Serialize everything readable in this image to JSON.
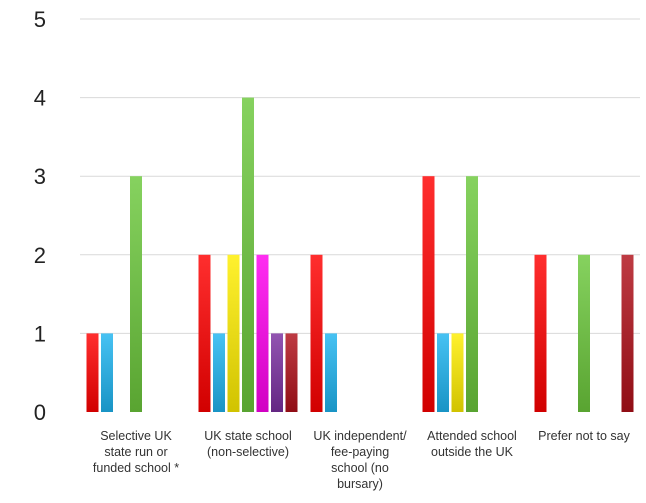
{
  "chart_data": {
    "type": "bar",
    "categories": [
      "Selective UK state run or funded school *",
      "UK state school (non-selective)",
      "UK independent/ fee-paying school (no bursary)",
      "Attended school outside the UK",
      "Prefer not to say"
    ],
    "category_lines": [
      [
        "Selective UK",
        "state run or",
        "funded school *"
      ],
      [
        "UK state school",
        "(non-selective)"
      ],
      [
        "UK independent/",
        "fee-paying",
        "school (no",
        "bursary)"
      ],
      [
        "Attended school",
        "outside the UK"
      ],
      [
        "Prefer not to say"
      ]
    ],
    "series": [
      {
        "color": "#ff0000",
        "values": [
          1,
          2,
          2,
          3,
          2
        ]
      },
      {
        "color": "#1eb4f0",
        "values": [
          1,
          1,
          1,
          1,
          0
        ]
      },
      {
        "color": "#ffee00",
        "values": [
          0,
          2,
          0,
          1,
          0
        ]
      },
      {
        "color": "#6cc83c",
        "values": [
          3,
          4,
          0,
          3,
          2
        ]
      },
      {
        "color": "#ff00ee",
        "values": [
          0,
          2,
          0,
          0,
          0
        ]
      },
      {
        "color": "#7a2fa0",
        "values": [
          0,
          1,
          0,
          0,
          0
        ]
      },
      {
        "color": "#b0101a",
        "values": [
          0,
          1,
          0,
          0,
          2
        ]
      }
    ],
    "ylim": [
      0,
      5
    ],
    "yticks": [
      "0",
      "1",
      "2",
      "3",
      "4",
      "5"
    ],
    "grid": true,
    "legend": "none",
    "title": "",
    "xlabel": "",
    "ylabel": ""
  }
}
